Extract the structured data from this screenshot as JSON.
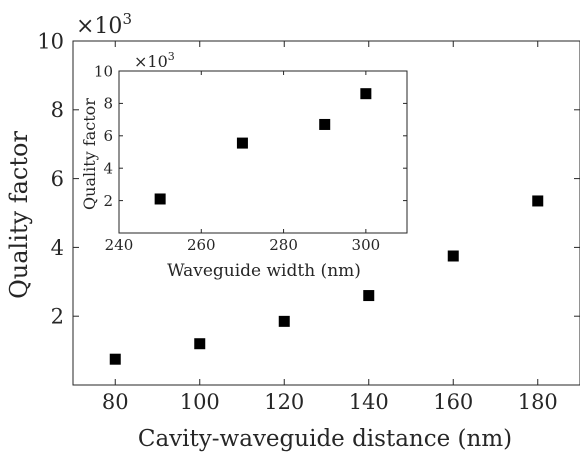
{
  "chart_data": [
    {
      "type": "scatter",
      "xlabel": "Cavity-waveguide distance (nm)",
      "ylabel": "Quality factor",
      "exponent_label": "×10",
      "exponent_power": "3",
      "xlim": [
        70,
        190
      ],
      "ylim": [
        0,
        10
      ],
      "xticks": [
        "80",
        "100",
        "120",
        "140",
        "160",
        "180"
      ],
      "yticks": [
        "2",
        "4",
        "6",
        "8",
        "10"
      ],
      "marker": "square",
      "series": [
        {
          "x": [
            80,
            100,
            120,
            140,
            160,
            180
          ],
          "y": [
            0.75,
            1.2,
            1.85,
            2.6,
            3.75,
            5.35
          ]
        }
      ]
    },
    {
      "type": "scatter",
      "inset": true,
      "xlabel": "Waveguide width (nm)",
      "ylabel": "Quality factor",
      "exponent_label": "×10",
      "exponent_power": "3",
      "xlim": [
        240,
        310
      ],
      "ylim": [
        0,
        10
      ],
      "xticks": [
        "240",
        "260",
        "280",
        "300"
      ],
      "yticks": [
        "2",
        "4",
        "6",
        "8",
        "10"
      ],
      "marker": "square",
      "series": [
        {
          "x": [
            250,
            270,
            290,
            300
          ],
          "y": [
            2.1,
            5.55,
            6.7,
            8.6
          ]
        }
      ]
    }
  ]
}
